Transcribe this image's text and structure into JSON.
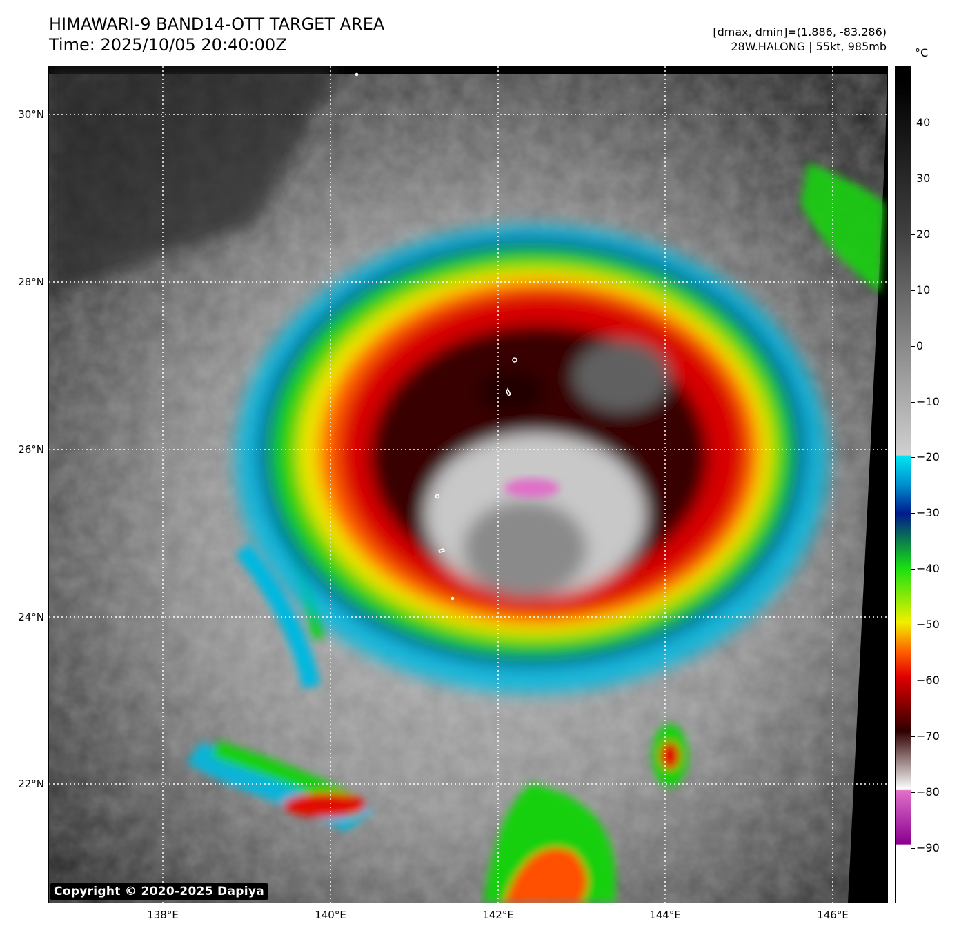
{
  "header": {
    "title_line1": "HIMAWARI-9 BAND14-OTT TARGET AREA",
    "title_line2": "Time: 2025/10/05 20:40:00Z",
    "stats_line1": "[dmax, dmin]=(1.886, -83.286)",
    "stats_line2": "28W.HALONG | 55kt, 985mb"
  },
  "axes": {
    "lat_labels": [
      "30°N",
      "28°N",
      "26°N",
      "24°N",
      "22°N"
    ],
    "lon_labels": [
      "138°E",
      "140°E",
      "142°E",
      "144°E",
      "146°E"
    ]
  },
  "colorbar": {
    "unit": "°C",
    "ticks": [
      "40",
      "30",
      "20",
      "10",
      "0",
      "−10",
      "−20",
      "−30",
      "−40",
      "−50",
      "−60",
      "−70",
      "−80",
      "−90"
    ],
    "colors": {
      "warm": "#000000",
      "cold_gray": "#d0d0d0",
      "cyan": "#00e5f0",
      "blue": "#001a8c",
      "green": "#18e010",
      "yellow": "#f0f000",
      "orange": "#ff6000",
      "red": "#e00000",
      "dark_red": "#300000",
      "magenta": "#e070c8",
      "purple": "#8a0090",
      "white": "#ffffff"
    }
  },
  "copyright": "Copyright © 2020-2025 Dapiya"
}
